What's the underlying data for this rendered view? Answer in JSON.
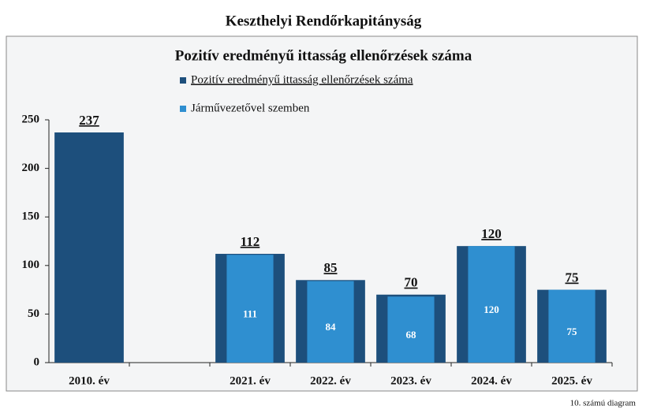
{
  "chart_data": {
    "type": "bar",
    "title": "Keszthelyi Rendőrkapitányság",
    "subtitle": "Pozitív eredményű ittasság ellenőrzések száma",
    "categories": [
      "2010. év",
      null,
      "2021. év",
      "2022. év",
      "2023. év",
      "2024. év",
      "2025. év"
    ],
    "series": [
      {
        "name": "Pozitív eredményű ittasság ellenőrzések száma",
        "color": "#1d4f7c",
        "values": [
          237,
          null,
          112,
          85,
          70,
          120,
          75
        ]
      },
      {
        "name": "Járművezetővel szemben",
        "color": "#2f8fd0",
        "values": [
          null,
          null,
          111,
          84,
          68,
          120,
          75
        ]
      }
    ],
    "ylim": [
      0,
      250
    ],
    "yticks": [
      0,
      50,
      100,
      150,
      200,
      250
    ],
    "footnote": "10. számú diagram"
  }
}
